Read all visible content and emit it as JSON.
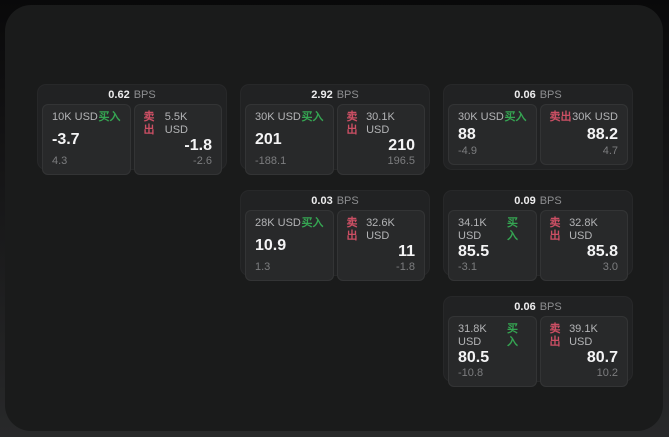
{
  "labels": {
    "bps": "BPS",
    "buy": "买入",
    "sell": "卖出"
  },
  "colors": {
    "buy": "#35a552",
    "sell": "#cc4f64",
    "panel": "#1a1b1b",
    "card": "#212223",
    "subcard": "#28292a"
  },
  "cards": [
    {
      "bps": "0.62",
      "buy": {
        "notional": "10K USD",
        "price": "-3.7",
        "delta": "4.3"
      },
      "sell": {
        "notional": "5.5K USD",
        "price": "-1.8",
        "delta": "-2.6"
      }
    },
    {
      "bps": "2.92",
      "buy": {
        "notional": "30K USD",
        "price": "201",
        "delta": "-188.1"
      },
      "sell": {
        "notional": "30.1K USD",
        "price": "210",
        "delta": "196.5"
      }
    },
    {
      "bps": "0.06",
      "buy": {
        "notional": "30K USD",
        "price": "88",
        "delta": "-4.9"
      },
      "sell": {
        "notional": "30K USD",
        "price": "88.2",
        "delta": "4.7"
      }
    },
    {
      "bps": "0.03",
      "buy": {
        "notional": "28K USD",
        "price": "10.9",
        "delta": "1.3"
      },
      "sell": {
        "notional": "32.6K USD",
        "price": "11",
        "delta": "-1.8"
      }
    },
    {
      "bps": "0.09",
      "buy": {
        "notional": "34.1K USD",
        "price": "85.5",
        "delta": "-3.1"
      },
      "sell": {
        "notional": "32.8K USD",
        "price": "85.8",
        "delta": "3.0"
      }
    },
    {
      "bps": "0.06",
      "buy": {
        "notional": "31.8K USD",
        "price": "80.5",
        "delta": "-10.8"
      },
      "sell": {
        "notional": "39.1K USD",
        "price": "80.7",
        "delta": "10.2"
      }
    }
  ]
}
